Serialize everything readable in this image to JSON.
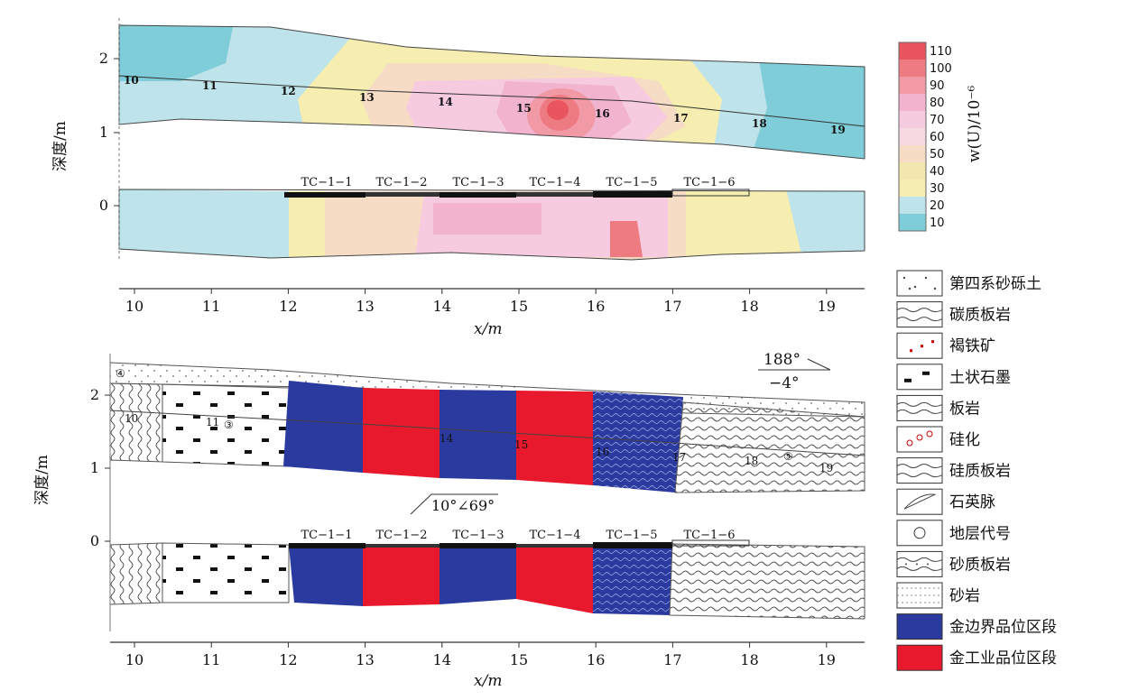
{
  "top_panel": {
    "ylabel": "深度/m",
    "xlabel": "x/m",
    "y_ticks": [
      "2",
      "1",
      "0"
    ],
    "x_ticks": [
      "10",
      "11",
      "12",
      "13",
      "14",
      "15",
      "16",
      "17",
      "18",
      "19"
    ],
    "point_labels": [
      "10",
      "11",
      "12",
      "13",
      "14",
      "15",
      "16",
      "17",
      "18",
      "19"
    ],
    "trench_labels": [
      "TC−1−1",
      "TC−1−2",
      "TC−1−3",
      "TC−1−4",
      "TC−1−5",
      "TC−1−6"
    ]
  },
  "colorbar": {
    "title": "w(U)/10⁻⁶",
    "ticks": [
      "110",
      "100",
      "90",
      "80",
      "70",
      "60",
      "50",
      "40",
      "30",
      "20",
      "10"
    ],
    "colors": [
      "#e8555f",
      "#ee7a82",
      "#f19aa6",
      "#f2b3cf",
      "#f6cbe0",
      "#f7d9e2",
      "#f6dcc4",
      "#f3e7b0",
      "#f5eeb0",
      "#bfe3ea",
      "#7fcdd8"
    ]
  },
  "bottom_panel": {
    "ylabel": "深度/m",
    "xlabel": "x/m",
    "y_ticks": [
      "2",
      "1",
      "0"
    ],
    "x_ticks": [
      "10",
      "11",
      "12",
      "13",
      "14",
      "15",
      "16",
      "17",
      "18",
      "19"
    ],
    "trench_labels": [
      "TC−1−1",
      "TC−1−2",
      "TC−1−3",
      "TC−1−4",
      "TC−1−5",
      "TC−1−6"
    ],
    "point_labels": [
      "10",
      "11",
      "14",
      "15",
      "16",
      "17",
      "18",
      "19"
    ],
    "attitude_top": "188°",
    "attitude_bottom": "−4°",
    "dip_note": "10°∠69°",
    "stratum_mark": "④",
    "stratum_mark_2": "③",
    "stratum_mark_3": "⑤"
  },
  "legend": {
    "items": [
      "第四系砂砾土",
      "碳质板岩",
      "褐铁矿",
      "土状石墨",
      "板岩",
      "硅化",
      "硅质板岩",
      "石英脉",
      "地层代号",
      "砂质板岩",
      "砂岩",
      "金边界品位区段",
      "金工业品位区段"
    ],
    "colors": {
      "blue": "#2b3a9e",
      "red": "#e8192c"
    }
  }
}
